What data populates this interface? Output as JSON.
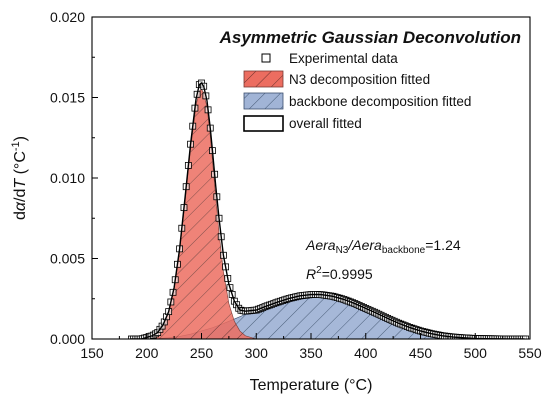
{
  "chart_data": {
    "type": "area",
    "title": "Asymmetric Gaussian Deconvolution",
    "xlabel": "Temperature (°C)",
    "ylabel": {
      "d": "d",
      "alpha": "α",
      "slash_d": "/d",
      "T": "T",
      "unit_open": " (°C",
      "sup": "-1",
      "unit_close": ")"
    },
    "xlim": [
      150,
      550
    ],
    "ylim": [
      0,
      0.02
    ],
    "xticks": [
      "150",
      "200",
      "250",
      "300",
      "350",
      "400",
      "450",
      "500",
      "550"
    ],
    "yticks": [
      "0.000",
      "0.005",
      "0.010",
      "0.015",
      "0.020"
    ],
    "legend": {
      "position": "top-right",
      "entries": [
        {
          "label": "Experimental data",
          "kind": "marker"
        },
        {
          "label": "N3 decomposition fitted",
          "kind": "hatch",
          "color": "#e86a5e"
        },
        {
          "label": "backbone decomposition fitted",
          "kind": "hatch",
          "color": "#9fb3d6"
        },
        {
          "label": "overall fitted",
          "kind": "line"
        }
      ]
    },
    "annotations": {
      "ratio": {
        "a1": "Aera",
        "s1": "N3",
        "mid": "/",
        "a2": "Aera",
        "s2": "backbone",
        "val": "=1.24"
      },
      "r2": {
        "r": "R",
        "sup": "2",
        "val": "=0.9995"
      }
    },
    "series": [
      {
        "name": "N3 decomposition fitted",
        "color": "#e86a5e",
        "x": [
          195,
          205,
          215,
          220,
          225,
          230,
          235,
          240,
          245,
          248,
          250,
          252,
          255,
          258,
          260,
          263,
          266,
          270,
          275,
          280,
          285,
          290,
          295,
          300
        ],
        "y": [
          0.0,
          0.0002,
          0.0008,
          0.0016,
          0.0031,
          0.0054,
          0.0085,
          0.0118,
          0.0145,
          0.0154,
          0.0155,
          0.0153,
          0.0144,
          0.0126,
          0.0111,
          0.0088,
          0.0066,
          0.0042,
          0.0022,
          0.0011,
          0.0005,
          0.0002,
          0.0001,
          0.0
        ]
      },
      {
        "name": "backbone decomposition fitted",
        "color": "#9fb3d6",
        "x": [
          195,
          210,
          220,
          230,
          240,
          250,
          260,
          270,
          280,
          290,
          300,
          310,
          320,
          330,
          340,
          350,
          355,
          360,
          370,
          380,
          390,
          400,
          410,
          420,
          430,
          440,
          450,
          460,
          470,
          480,
          490,
          500,
          510,
          520,
          530,
          540
        ],
        "y": [
          0.0,
          3e-05,
          8e-05,
          0.00016,
          0.0003,
          0.0005,
          0.0007,
          0.00096,
          0.00124,
          0.00153,
          0.0018,
          0.00206,
          0.0023,
          0.00252,
          0.00268,
          0.00276,
          0.00277,
          0.00275,
          0.00265,
          0.00246,
          0.0022,
          0.0019,
          0.0016,
          0.00128,
          0.00098,
          0.00072,
          0.0005,
          0.00033,
          0.0002,
          0.00012,
          7e-05,
          3e-05,
          2e-05,
          1e-05,
          0.0,
          0.0
        ]
      },
      {
        "name": "overall fitted",
        "x": [
          185,
          195,
          205,
          210,
          215,
          220,
          225,
          230,
          235,
          240,
          245,
          248,
          250,
          252,
          255,
          258,
          260,
          263,
          266,
          270,
          275,
          280,
          285,
          290,
          300,
          310,
          320,
          330,
          340,
          350,
          355,
          360,
          370,
          380,
          390,
          400,
          410,
          420,
          430,
          440,
          450,
          460,
          470,
          480,
          490,
          500,
          510,
          520,
          530,
          545
        ],
        "y": [
          0.0,
          0.0,
          0.0002,
          0.0004,
          0.0009,
          0.0017,
          0.0032,
          0.0056,
          0.0088,
          0.0121,
          0.0149,
          0.0158,
          0.0159,
          0.0157,
          0.0148,
          0.0131,
          0.0117,
          0.0095,
          0.0075,
          0.0052,
          0.0034,
          0.00235,
          0.0018,
          0.00173,
          0.0018,
          0.00206,
          0.0023,
          0.00252,
          0.00268,
          0.00276,
          0.00277,
          0.00275,
          0.00265,
          0.00246,
          0.0022,
          0.0019,
          0.0016,
          0.00128,
          0.00098,
          0.00072,
          0.0005,
          0.00033,
          0.0002,
          0.00012,
          7e-05,
          3e-05,
          2e-05,
          1e-05,
          0.0,
          0.0
        ]
      }
    ],
    "experimental_markers": {
      "x_start": 186,
      "x_end": 546,
      "x_step": 2
    }
  }
}
